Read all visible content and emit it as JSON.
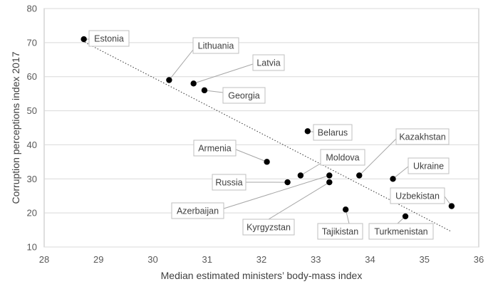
{
  "chart_data": {
    "type": "scatter",
    "xlabel": "Median estimated ministers’ body-mass index",
    "ylabel": "Corruption perceptions index 2017",
    "xlim": [
      28,
      36
    ],
    "ylim": [
      10,
      80
    ],
    "x_ticks": [
      "28",
      "29",
      "30",
      "31",
      "32",
      "33",
      "34",
      "35",
      "36"
    ],
    "y_ticks": [
      "10",
      "20",
      "30",
      "40",
      "50",
      "60",
      "70",
      "80"
    ],
    "grid": "horizontal",
    "trendline": {
      "style": "dotted",
      "from": [
        28.7,
        70.5
      ],
      "to": [
        35.5,
        14.5
      ]
    },
    "points": [
      {
        "label": "Estonia",
        "x": 28.73,
        "y": 71
      },
      {
        "label": "Lithuania",
        "x": 30.3,
        "y": 59
      },
      {
        "label": "Latvia",
        "x": 30.75,
        "y": 58
      },
      {
        "label": "Georgia",
        "x": 30.95,
        "y": 56
      },
      {
        "label": "Belarus",
        "x": 32.85,
        "y": 44
      },
      {
        "label": "Kazakhstan",
        "x": 33.8,
        "y": 31
      },
      {
        "label": "Armenia",
        "x": 32.1,
        "y": 35
      },
      {
        "label": "Moldova",
        "x": 32.72,
        "y": 31
      },
      {
        "label": "Ukraine",
        "x": 34.42,
        "y": 30
      },
      {
        "label": "Russia",
        "x": 32.48,
        "y": 29
      },
      {
        "label": "Azerbaijan",
        "x": 33.25,
        "y": 31
      },
      {
        "label": "Kyrgyzstan",
        "x": 33.25,
        "y": 29
      },
      {
        "label": "Uzbekistan",
        "x": 35.5,
        "y": 22
      },
      {
        "label": "Tajikistan",
        "x": 33.55,
        "y": 21
      },
      {
        "label": "Turkmenistan",
        "x": 34.65,
        "y": 19
      }
    ]
  }
}
